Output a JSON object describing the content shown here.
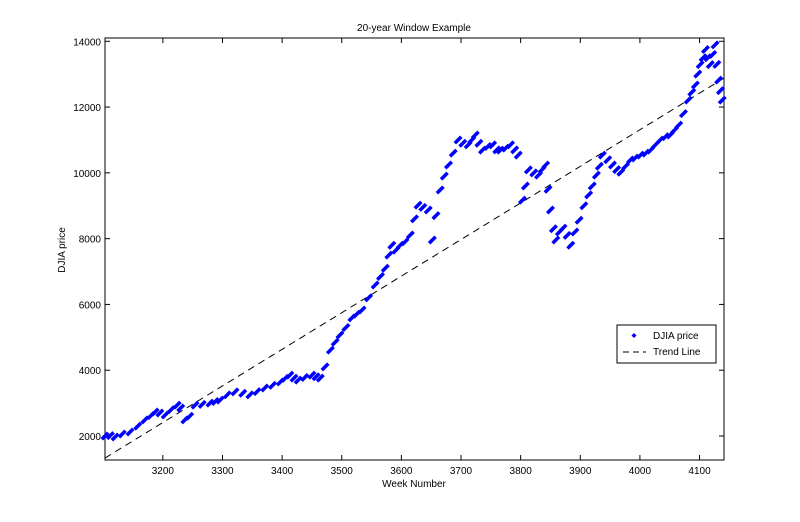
{
  "chart_data": {
    "type": "scatter",
    "title": "20-year Window Example",
    "xlabel": "Week Number",
    "ylabel": "DJIA price",
    "xlim": [
      3103,
      4141
    ],
    "ylim": [
      1270,
      14100
    ],
    "xticks": [
      3200,
      3300,
      3400,
      3500,
      3600,
      3700,
      3800,
      3900,
      4000,
      4100
    ],
    "yticks": [
      2000,
      4000,
      6000,
      8000,
      10000,
      12000,
      14000
    ],
    "grid": false,
    "legend_position": "right-middle",
    "series": [
      {
        "name": "DJIA price",
        "style": "markers",
        "color": "#0000ff",
        "x": [
          3103,
          3112,
          3120,
          3132,
          3145,
          3158,
          3170,
          3180,
          3187,
          3195,
          3204,
          3214,
          3224,
          3230,
          3237,
          3245,
          3254,
          3266,
          3279,
          3288,
          3296,
          3308,
          3321,
          3334,
          3346,
          3358,
          3371,
          3384,
          3397,
          3405,
          3413,
          3420,
          3427,
          3438,
          3450,
          3457,
          3464,
          3472,
          3481,
          3489,
          3497,
          3507,
          3517,
          3525,
          3534,
          3545,
          3556,
          3565,
          3573,
          3579,
          3584,
          3591,
          3598,
          3606,
          3615,
          3622,
          3628,
          3636,
          3645,
          3652,
          3658,
          3665,
          3672,
          3679,
          3687,
          3695,
          3703,
          3712,
          3718,
          3724,
          3730,
          3736,
          3745,
          3753,
          3760,
          3766,
          3775,
          3783,
          3790,
          3796,
          3803,
          3808,
          3813,
          3822,
          3830,
          3836,
          3842,
          3846,
          3850,
          3855,
          3859,
          3865,
          3871,
          3878,
          3884,
          3891,
          3898,
          3906,
          3914,
          3920,
          3927,
          3932,
          3937,
          3946,
          3954,
          3961,
          3968,
          3976,
          3984,
          3992,
          4001,
          4010,
          4018,
          4026,
          4034,
          4043,
          4051,
          4058,
          4065,
          4073,
          4081,
          4087,
          4093,
          4097,
          4101,
          4106,
          4110,
          4114,
          4118,
          4122,
          4126,
          4129,
          4132,
          4135,
          4138
        ],
        "y": [
          2000,
          2010,
          1970,
          2060,
          2120,
          2300,
          2490,
          2620,
          2730,
          2700,
          2640,
          2800,
          2940,
          2850,
          2490,
          2600,
          2940,
          2960,
          3000,
          3050,
          3090,
          3250,
          3340,
          3300,
          3250,
          3350,
          3460,
          3540,
          3640,
          3750,
          3850,
          3760,
          3700,
          3780,
          3850,
          3800,
          3760,
          4100,
          4610,
          4850,
          5070,
          5300,
          5590,
          5700,
          5830,
          6200,
          6590,
          6850,
          7100,
          7500,
          7800,
          7650,
          7800,
          7900,
          8110,
          8600,
          9020,
          8950,
          8870,
          7960,
          8700,
          9480,
          9900,
          10240,
          10600,
          11000,
          10900,
          10850,
          11000,
          11150,
          10900,
          10690,
          10800,
          10850,
          10700,
          10690,
          10750,
          10850,
          10700,
          10540,
          9170,
          9600,
          10090,
          10000,
          9930,
          10100,
          10240,
          9500,
          8870,
          8300,
          7960,
          8200,
          8320,
          8100,
          7800,
          8200,
          8560,
          9000,
          9330,
          9600,
          9930,
          10200,
          10540,
          10400,
          10240,
          10100,
          10020,
          10200,
          10390,
          10450,
          10540,
          10600,
          10690,
          10850,
          11000,
          11100,
          11150,
          11300,
          11450,
          11800,
          12210,
          12450,
          12670,
          13000,
          13290,
          13500,
          13750,
          13500,
          13290,
          13600,
          13890,
          13300,
          12820,
          12500,
          12210
        ]
      },
      {
        "name": "Trend Line",
        "style": "dashed-line",
        "color": "#000000",
        "x": [
          3103,
          4141
        ],
        "y": [
          1330,
          12880
        ]
      }
    ]
  }
}
